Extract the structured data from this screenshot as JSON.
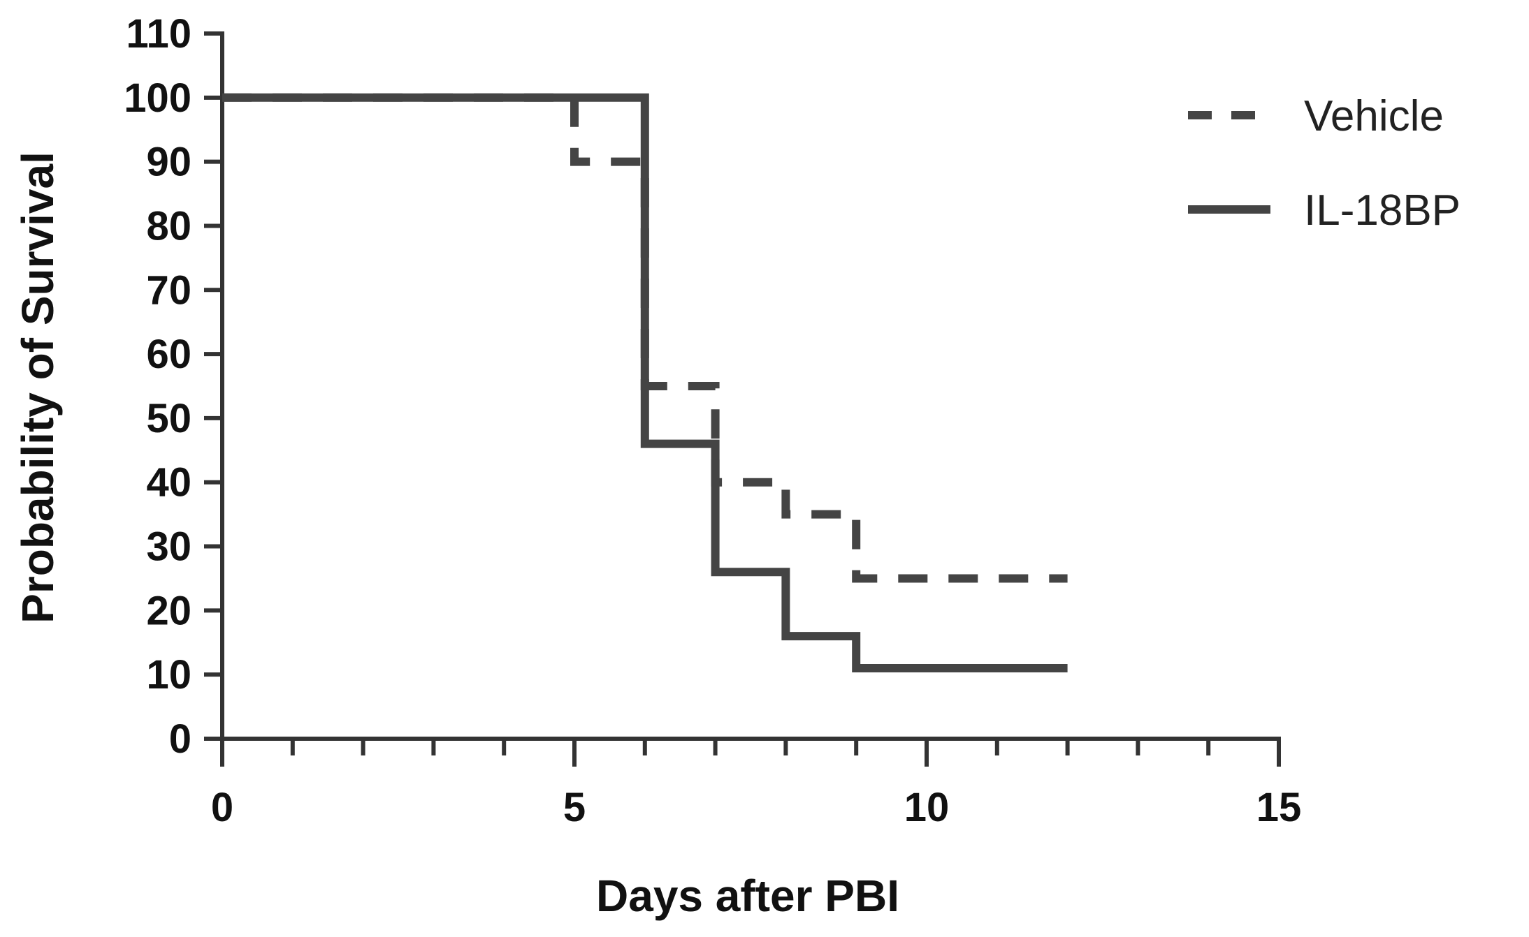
{
  "chart_data": {
    "type": "line",
    "subtype": "kaplan-meier step",
    "title": "",
    "xlabel": "Days after PBI",
    "ylabel": "Probability of Survival",
    "xlim": [
      0,
      15
    ],
    "ylim": [
      0,
      110
    ],
    "x_ticks": [
      "0",
      "5",
      "10",
      "15"
    ],
    "x_minor_step": 1,
    "y_ticks": [
      "0",
      "10",
      "20",
      "30",
      "40",
      "50",
      "60",
      "70",
      "80",
      "90",
      "100",
      "110"
    ],
    "grid": false,
    "legend_position": "top-right",
    "series": [
      {
        "name": "Vehicle",
        "style": "dashed",
        "color": "#444444",
        "x": [
          0,
          5,
          5,
          6,
          6,
          7,
          7,
          8,
          8,
          9,
          9,
          12
        ],
        "y": [
          100,
          100,
          90,
          90,
          55,
          55,
          40,
          40,
          35,
          35,
          25,
          25
        ]
      },
      {
        "name": "IL-18BP",
        "style": "solid",
        "color": "#444444",
        "x": [
          0,
          6,
          6,
          7,
          7,
          8,
          8,
          9,
          9,
          12
        ],
        "y": [
          100,
          100,
          46,
          46,
          26,
          26,
          16,
          16,
          11,
          11
        ]
      }
    ]
  }
}
